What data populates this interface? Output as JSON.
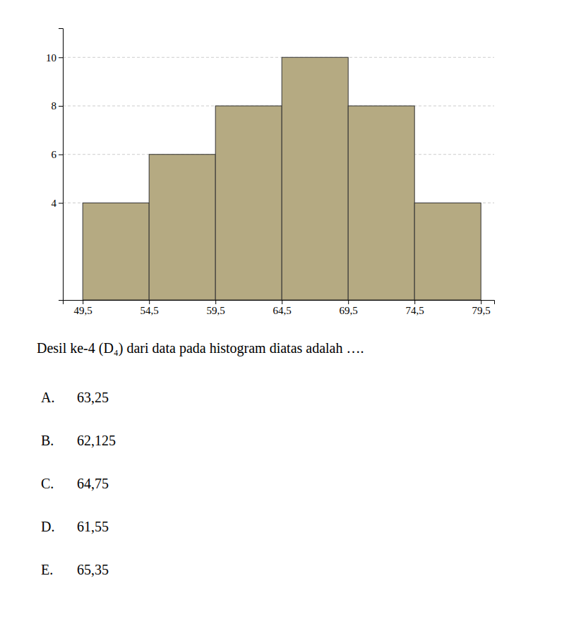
{
  "chart_data": {
    "type": "histogram",
    "bins": [
      49.5,
      54.5,
      59.5,
      64.5,
      69.5,
      74.5,
      79.5
    ],
    "values": [
      4,
      6,
      8,
      10,
      8,
      4
    ],
    "color": "#b5aa82",
    "xlim": [
      48.0,
      80.5
    ],
    "ylim": [
      0,
      11.2
    ],
    "xticks": [
      {
        "value": 49.5,
        "label": "49,5"
      },
      {
        "value": 54.5,
        "label": "54,5"
      },
      {
        "value": 59.5,
        "label": "59,5"
      },
      {
        "value": 64.5,
        "label": "64,5"
      },
      {
        "value": 69.5,
        "label": "69,5"
      },
      {
        "value": 74.5,
        "label": "74,5"
      },
      {
        "value": 79.5,
        "label": "79,5"
      }
    ],
    "yticks": [
      4,
      6,
      8,
      10
    ],
    "grid": true,
    "annotations": [
      "Desil ke-4 (D₄) dari data pada histogram diatas adalah ….",
      [
        "A.",
        "63,25"
      ],
      [
        "B.",
        "62,125"
      ],
      [
        "C.",
        "64,75"
      ],
      [
        "D.",
        "61,55"
      ],
      [
        "E.",
        "65,35"
      ]
    ]
  }
}
